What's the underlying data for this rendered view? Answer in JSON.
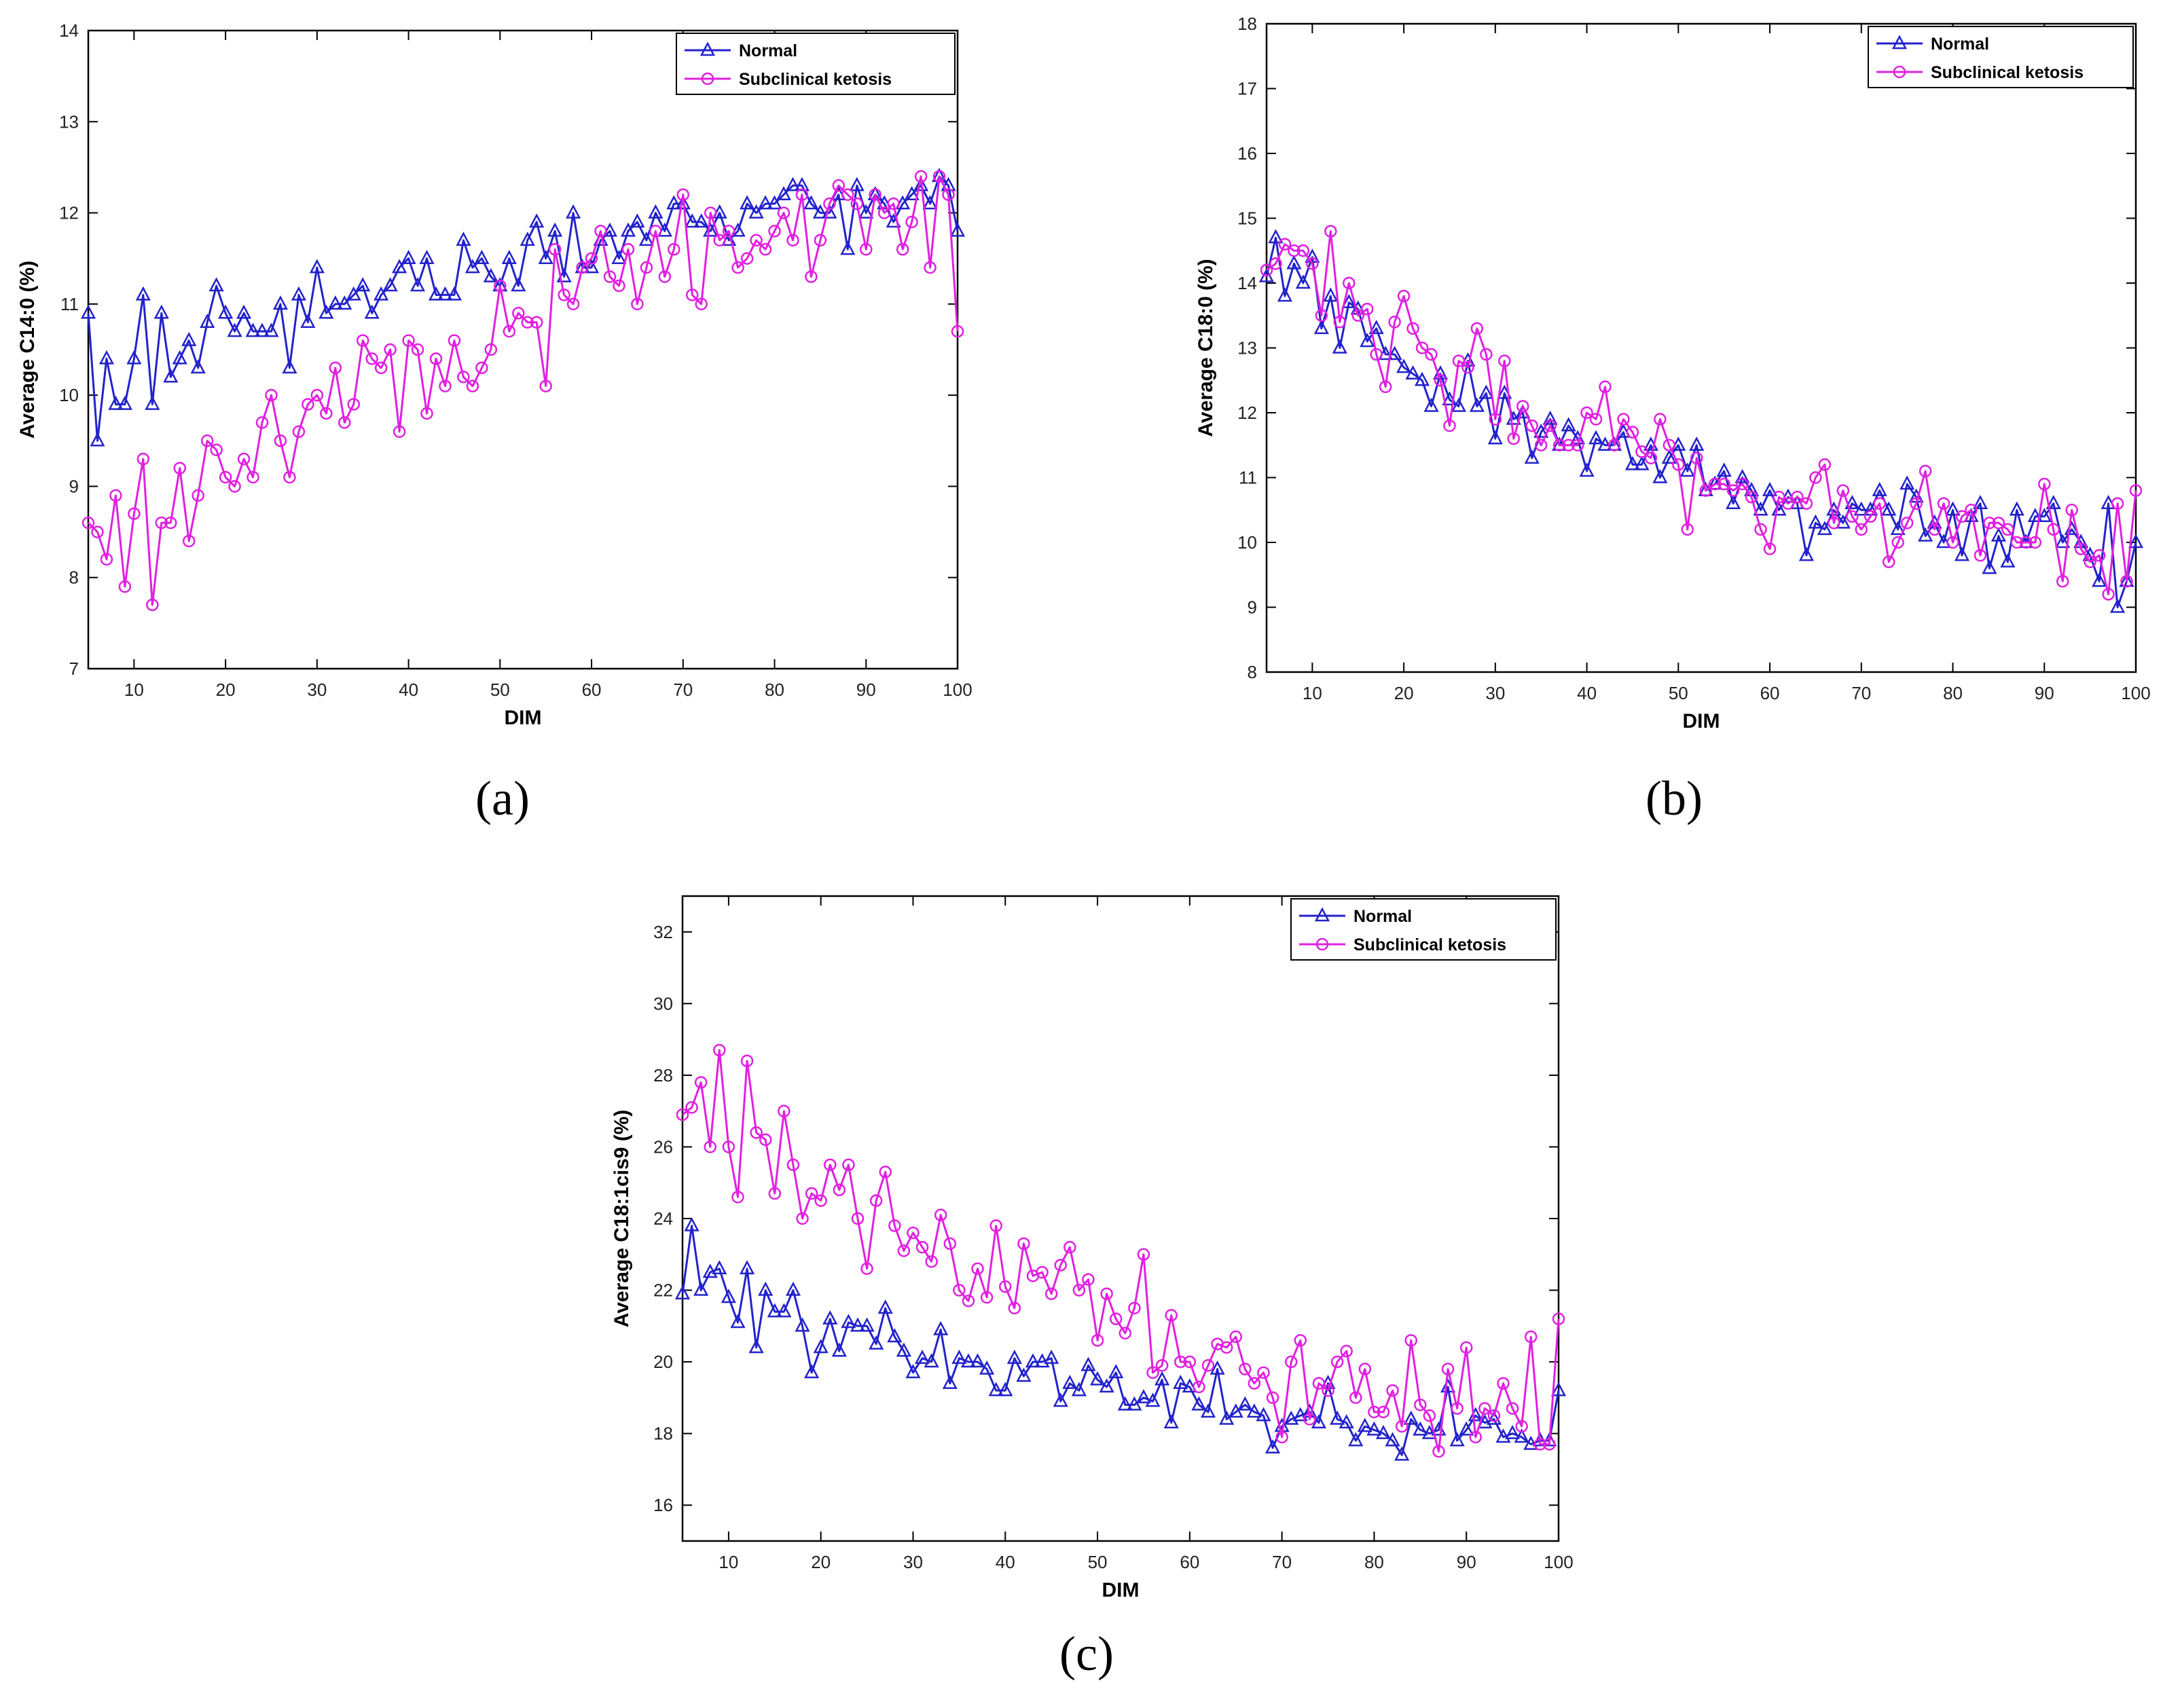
{
  "colors": {
    "normal": "#2222cc",
    "ketosis": "#e020e0",
    "axis": "#000000",
    "bg": "#ffffff"
  },
  "captions": {
    "a": "(a)",
    "b": "(b)",
    "c": "(c)"
  },
  "chart_data": [
    {
      "id": "a",
      "type": "line",
      "title": "",
      "xlabel": "DIM",
      "ylabel": "Average C14:0 (%)",
      "xlim": [
        5,
        100
      ],
      "ylim": [
        7,
        14
      ],
      "xticks": [
        10,
        20,
        30,
        40,
        50,
        60,
        70,
        80,
        90,
        100
      ],
      "yticks": [
        7,
        8,
        9,
        10,
        11,
        12,
        13,
        14
      ],
      "legend_position": "top-right",
      "x": [
        5,
        6,
        7,
        8,
        9,
        10,
        11,
        12,
        13,
        14,
        15,
        16,
        17,
        18,
        19,
        20,
        21,
        22,
        23,
        24,
        25,
        26,
        27,
        28,
        29,
        30,
        31,
        32,
        33,
        34,
        35,
        36,
        37,
        38,
        39,
        40,
        41,
        42,
        43,
        44,
        45,
        46,
        47,
        48,
        49,
        50,
        51,
        52,
        53,
        54,
        55,
        56,
        57,
        58,
        59,
        60,
        61,
        62,
        63,
        64,
        65,
        66,
        67,
        68,
        69,
        70,
        71,
        72,
        73,
        74,
        75,
        76,
        77,
        78,
        79,
        80,
        81,
        82,
        83,
        84,
        85,
        86,
        87,
        88,
        89,
        90,
        91,
        92,
        93,
        94,
        95,
        96,
        97,
        98,
        99,
        100
      ],
      "series": [
        {
          "name": "Normal",
          "marker": "triangle",
          "values": [
            10.9,
            9.5,
            10.4,
            9.9,
            9.9,
            10.4,
            11.1,
            9.9,
            10.9,
            10.2,
            10.4,
            10.6,
            10.3,
            10.8,
            11.2,
            10.9,
            10.7,
            10.9,
            10.7,
            10.7,
            10.7,
            11.0,
            10.3,
            11.1,
            10.8,
            11.4,
            10.9,
            11.0,
            11.0,
            11.1,
            11.2,
            10.9,
            11.1,
            11.2,
            11.4,
            11.5,
            11.2,
            11.5,
            11.1,
            11.1,
            11.1,
            11.7,
            11.4,
            11.5,
            11.3,
            11.2,
            11.5,
            11.2,
            11.7,
            11.9,
            11.5,
            11.8,
            11.3,
            12.0,
            11.4,
            11.4,
            11.7,
            11.8,
            11.5,
            11.8,
            11.9,
            11.7,
            12.0,
            11.8,
            12.1,
            12.1,
            11.9,
            11.9,
            11.8,
            12.0,
            11.7,
            11.8,
            12.1,
            12.0,
            12.1,
            12.1,
            12.2,
            12.3,
            12.3,
            12.1,
            12.0,
            12.0,
            12.2,
            11.6,
            12.3,
            12.0,
            12.2,
            12.1,
            11.9,
            12.1,
            12.2,
            12.3,
            12.1,
            12.4,
            12.3,
            11.8
          ]
        },
        {
          "name": "Subclinical ketosis",
          "marker": "circle",
          "values": [
            8.6,
            8.5,
            8.2,
            8.9,
            7.9,
            8.7,
            9.3,
            7.7,
            8.6,
            8.6,
            9.2,
            8.4,
            8.9,
            9.5,
            9.4,
            9.1,
            9.0,
            9.3,
            9.1,
            9.7,
            10.0,
            9.5,
            9.1,
            9.6,
            9.9,
            10.0,
            9.8,
            10.3,
            9.7,
            9.9,
            10.6,
            10.4,
            10.3,
            10.5,
            9.6,
            10.6,
            10.5,
            9.8,
            10.4,
            10.1,
            10.6,
            10.2,
            10.1,
            10.3,
            10.5,
            11.2,
            10.7,
            10.9,
            10.8,
            10.8,
            10.1,
            11.6,
            11.1,
            11.0,
            11.4,
            11.5,
            11.8,
            11.3,
            11.2,
            11.6,
            11.0,
            11.4,
            11.8,
            11.3,
            11.6,
            12.2,
            11.1,
            11.0,
            12.0,
            11.7,
            11.8,
            11.4,
            11.5,
            11.7,
            11.6,
            11.8,
            12.0,
            11.7,
            12.2,
            11.3,
            11.7,
            12.1,
            12.3,
            12.2,
            12.1,
            11.6,
            12.2,
            12.0,
            12.1,
            11.6,
            11.9,
            12.4,
            11.4,
            12.4,
            12.2,
            10.7
          ]
        }
      ]
    },
    {
      "id": "b",
      "type": "line",
      "title": "",
      "xlabel": "DIM",
      "ylabel": "Average C18:0 (%)",
      "xlim": [
        5,
        100
      ],
      "ylim": [
        8,
        18
      ],
      "xticks": [
        10,
        20,
        30,
        40,
        50,
        60,
        70,
        80,
        90,
        100
      ],
      "yticks": [
        8,
        9,
        10,
        11,
        12,
        13,
        14,
        15,
        16,
        17,
        18
      ],
      "legend_position": "top-right",
      "x": [
        5,
        6,
        7,
        8,
        9,
        10,
        11,
        12,
        13,
        14,
        15,
        16,
        17,
        18,
        19,
        20,
        21,
        22,
        23,
        24,
        25,
        26,
        27,
        28,
        29,
        30,
        31,
        32,
        33,
        34,
        35,
        36,
        37,
        38,
        39,
        40,
        41,
        42,
        43,
        44,
        45,
        46,
        47,
        48,
        49,
        50,
        51,
        52,
        53,
        54,
        55,
        56,
        57,
        58,
        59,
        60,
        61,
        62,
        63,
        64,
        65,
        66,
        67,
        68,
        69,
        70,
        71,
        72,
        73,
        74,
        75,
        76,
        77,
        78,
        79,
        80,
        81,
        82,
        83,
        84,
        85,
        86,
        87,
        88,
        89,
        90,
        91,
        92,
        93,
        94,
        95,
        96,
        97,
        98,
        99,
        100
      ],
      "series": [
        {
          "name": "Normal",
          "marker": "triangle",
          "values": [
            14.1,
            14.7,
            13.8,
            14.3,
            14.0,
            14.4,
            13.3,
            13.8,
            13.0,
            13.7,
            13.6,
            13.1,
            13.3,
            12.9,
            12.9,
            12.7,
            12.6,
            12.5,
            12.1,
            12.6,
            12.2,
            12.1,
            12.8,
            12.1,
            12.3,
            11.6,
            12.3,
            11.9,
            12.0,
            11.3,
            11.7,
            11.9,
            11.5,
            11.8,
            11.6,
            11.1,
            11.6,
            11.5,
            11.5,
            11.7,
            11.2,
            11.2,
            11.5,
            11.0,
            11.3,
            11.5,
            11.1,
            11.5,
            10.8,
            10.9,
            11.1,
            10.6,
            11.0,
            10.8,
            10.5,
            10.8,
            10.5,
            10.7,
            10.6,
            9.8,
            10.3,
            10.2,
            10.5,
            10.3,
            10.6,
            10.5,
            10.5,
            10.8,
            10.5,
            10.2,
            10.9,
            10.7,
            10.1,
            10.3,
            10.0,
            10.5,
            9.8,
            10.4,
            10.6,
            9.6,
            10.1,
            9.7,
            10.5,
            10.0,
            10.4,
            10.4,
            10.6,
            10.0,
            10.2,
            10.0,
            9.8,
            9.4,
            10.6,
            9.0,
            9.4,
            10.0
          ]
        },
        {
          "name": "Subclinical ketosis",
          "marker": "circle",
          "values": [
            14.2,
            14.3,
            14.6,
            14.5,
            14.5,
            14.3,
            13.5,
            14.8,
            13.4,
            14.0,
            13.5,
            13.6,
            12.9,
            12.4,
            13.4,
            13.8,
            13.3,
            13.0,
            12.9,
            12.5,
            11.8,
            12.8,
            12.7,
            13.3,
            12.9,
            11.9,
            12.8,
            11.6,
            12.1,
            11.8,
            11.5,
            11.8,
            11.5,
            11.5,
            11.5,
            12.0,
            11.9,
            12.4,
            11.5,
            11.9,
            11.7,
            11.4,
            11.3,
            11.9,
            11.5,
            11.2,
            10.2,
            11.3,
            10.8,
            10.9,
            10.9,
            10.8,
            10.9,
            10.7,
            10.2,
            9.9,
            10.7,
            10.6,
            10.7,
            10.6,
            11.0,
            11.2,
            10.3,
            10.8,
            10.4,
            10.2,
            10.4,
            10.6,
            9.7,
            10.0,
            10.3,
            10.6,
            11.1,
            10.2,
            10.6,
            10.0,
            10.4,
            10.5,
            9.8,
            10.3,
            10.3,
            10.2,
            10.0,
            10.0,
            10.0,
            10.9,
            10.2,
            9.4,
            10.5,
            9.9,
            9.7,
            9.8,
            9.2,
            10.6,
            9.4,
            10.8
          ]
        }
      ]
    },
    {
      "id": "c",
      "type": "line",
      "title": "",
      "xlabel": "DIM",
      "ylabel": "Average C18:1cis9 (%)",
      "xlim": [
        5,
        100
      ],
      "ylim": [
        15,
        33
      ],
      "xticks": [
        10,
        20,
        30,
        40,
        50,
        60,
        70,
        80,
        90,
        100
      ],
      "yticks": [
        16,
        18,
        20,
        22,
        24,
        26,
        28,
        30,
        32
      ],
      "legend_position": "top-right",
      "x": [
        5,
        6,
        7,
        8,
        9,
        10,
        11,
        12,
        13,
        14,
        15,
        16,
        17,
        18,
        19,
        20,
        21,
        22,
        23,
        24,
        25,
        26,
        27,
        28,
        29,
        30,
        31,
        32,
        33,
        34,
        35,
        36,
        37,
        38,
        39,
        40,
        41,
        42,
        43,
        44,
        45,
        46,
        47,
        48,
        49,
        50,
        51,
        52,
        53,
        54,
        55,
        56,
        57,
        58,
        59,
        60,
        61,
        62,
        63,
        64,
        65,
        66,
        67,
        68,
        69,
        70,
        71,
        72,
        73,
        74,
        75,
        76,
        77,
        78,
        79,
        80,
        81,
        82,
        83,
        84,
        85,
        86,
        87,
        88,
        89,
        90,
        91,
        92,
        93,
        94,
        95,
        96,
        97,
        98,
        99,
        100
      ],
      "series": [
        {
          "name": "Normal",
          "marker": "triangle",
          "values": [
            21.9,
            23.8,
            22.0,
            22.5,
            22.6,
            21.8,
            21.1,
            22.6,
            20.4,
            22.0,
            21.4,
            21.4,
            22.0,
            21.0,
            19.7,
            20.4,
            21.2,
            20.3,
            21.1,
            21.0,
            21.0,
            20.5,
            21.5,
            20.7,
            20.3,
            19.7,
            20.1,
            20.0,
            20.9,
            19.4,
            20.1,
            20.0,
            20.0,
            19.8,
            19.2,
            19.2,
            20.1,
            19.6,
            20.0,
            20.0,
            20.1,
            18.9,
            19.4,
            19.2,
            19.9,
            19.5,
            19.3,
            19.7,
            18.8,
            18.8,
            19.0,
            18.9,
            19.5,
            18.3,
            19.4,
            19.3,
            18.8,
            18.6,
            19.8,
            18.4,
            18.6,
            18.8,
            18.6,
            18.5,
            17.6,
            18.2,
            18.4,
            18.5,
            18.6,
            18.3,
            19.4,
            18.4,
            18.3,
            17.8,
            18.2,
            18.1,
            18.0,
            17.8,
            17.4,
            18.4,
            18.1,
            18.0,
            18.1,
            19.3,
            17.8,
            18.1,
            18.5,
            18.3,
            18.4,
            17.9,
            18.0,
            17.9,
            17.7,
            17.8,
            17.8,
            19.2
          ]
        },
        {
          "name": "Subclinical ketosis",
          "marker": "circle",
          "values": [
            26.9,
            27.1,
            27.8,
            26.0,
            28.7,
            26.0,
            24.6,
            28.4,
            26.4,
            26.2,
            24.7,
            27.0,
            25.5,
            24.0,
            24.7,
            24.5,
            25.5,
            24.8,
            25.5,
            24.0,
            22.6,
            24.5,
            25.3,
            23.8,
            23.1,
            23.6,
            23.2,
            22.8,
            24.1,
            23.3,
            22.0,
            21.7,
            22.6,
            21.8,
            23.8,
            22.1,
            21.5,
            23.3,
            22.4,
            22.5,
            21.9,
            22.7,
            23.2,
            22.0,
            22.3,
            20.6,
            21.9,
            21.2,
            20.8,
            21.5,
            23.0,
            19.7,
            19.9,
            21.3,
            20.0,
            20.0,
            19.3,
            19.9,
            20.5,
            20.4,
            20.7,
            19.8,
            19.4,
            19.7,
            19.0,
            17.9,
            20.0,
            20.6,
            18.4,
            19.4,
            19.2,
            20.0,
            20.3,
            19.0,
            19.8,
            18.6,
            18.6,
            19.2,
            18.2,
            20.6,
            18.8,
            18.5,
            17.5,
            19.8,
            18.7,
            20.4,
            17.9,
            18.7,
            18.5,
            19.4,
            18.7,
            18.2,
            20.7,
            17.7,
            17.7,
            21.2
          ]
        }
      ]
    }
  ]
}
